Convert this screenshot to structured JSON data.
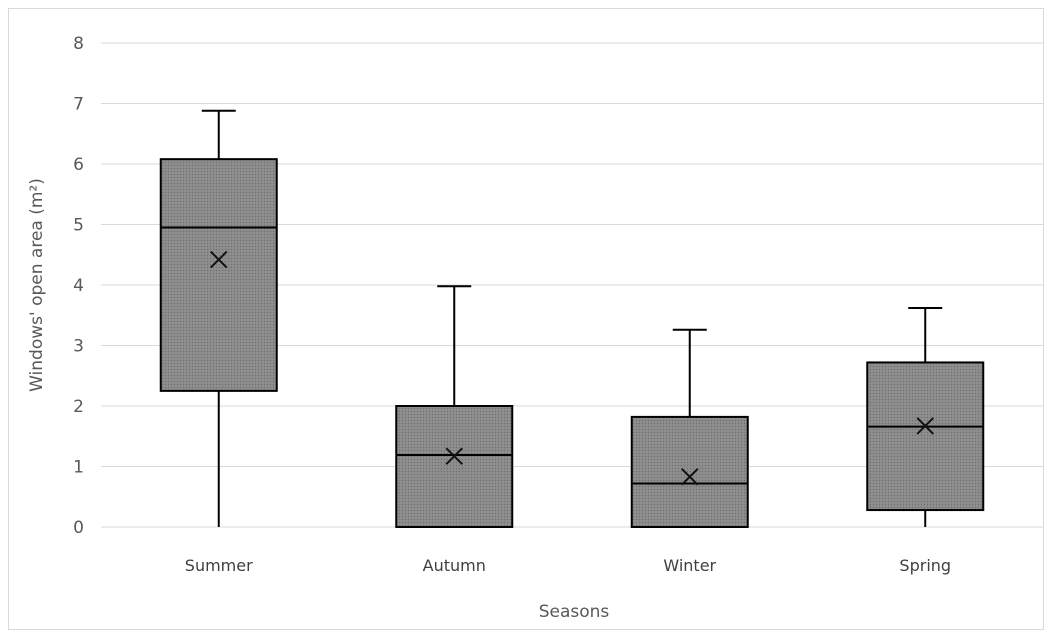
{
  "chart_data": {
    "type": "boxplot",
    "xlabel": "Seasons",
    "ylabel": "Windows' open area (m²)",
    "ylim": [
      0,
      8
    ],
    "yticks": [
      0,
      1,
      2,
      3,
      4,
      5,
      6,
      7,
      8
    ],
    "grid": true,
    "legend": "none",
    "categories": [
      "Summer",
      "Autumn",
      "Winter",
      "Spring"
    ],
    "boxes": [
      {
        "category": "Summer",
        "min": 0.0,
        "q1": 2.25,
        "median": 4.95,
        "q3": 6.08,
        "max": 6.88,
        "mean": 4.42
      },
      {
        "category": "Autumn",
        "min": 0.0,
        "q1": 0.0,
        "median": 1.19,
        "q3": 2.0,
        "max": 3.98,
        "mean": 1.17
      },
      {
        "category": "Winter",
        "min": 0.0,
        "q1": 0.0,
        "median": 0.72,
        "q3": 1.82,
        "max": 3.26,
        "mean": 0.83
      },
      {
        "category": "Spring",
        "min": 0.0,
        "q1": 0.28,
        "median": 1.66,
        "q3": 2.72,
        "max": 3.62,
        "mean": 1.67
      }
    ],
    "colors": {
      "box_fill": "#808080",
      "box_stroke": "#000000",
      "grid": "#d9d9d9",
      "text": "#595959"
    }
  }
}
